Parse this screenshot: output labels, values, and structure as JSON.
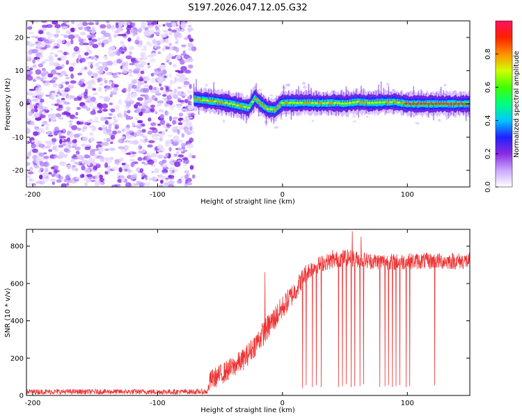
{
  "title": "S197.2026.047.12.05.G32",
  "chart_data": [
    {
      "type": "heatmap",
      "xlabel": "Height of straight line (km)",
      "ylabel": "Frequency (Hz)",
      "xlim": [
        -205,
        150
      ],
      "ylim": [
        -25,
        25
      ],
      "xticks": [
        -200,
        -100,
        0,
        100
      ],
      "xtick_labels": [
        "-200",
        "-100",
        "0",
        "100"
      ],
      "yticks": [
        -20,
        -10,
        0,
        10,
        20
      ],
      "ytick_labels": [
        "-20",
        "-10",
        "0",
        "10",
        "20"
      ],
      "noise_region_x": [
        -205,
        -71
      ],
      "signal_trace": [
        [
          -71,
          1.5
        ],
        [
          -65,
          1.2
        ],
        [
          -55,
          0.8
        ],
        [
          -45,
          0.3
        ],
        [
          -35,
          -0.5
        ],
        [
          -27,
          -1.2
        ],
        [
          -22,
          1.8
        ],
        [
          -18,
          0.2
        ],
        [
          -12,
          -1.5
        ],
        [
          -6,
          -1.8
        ],
        [
          -3,
          -0.6
        ],
        [
          0,
          0.3
        ],
        [
          10,
          0.3
        ],
        [
          20,
          0.4
        ],
        [
          30,
          0.2
        ],
        [
          40,
          0.3
        ],
        [
          50,
          0.1
        ],
        [
          60,
          0.6
        ],
        [
          70,
          0.3
        ],
        [
          80,
          0.5
        ],
        [
          90,
          0.6
        ],
        [
          95,
          0.3
        ],
        [
          100,
          0
        ],
        [
          110,
          0
        ],
        [
          120,
          0
        ],
        [
          130,
          0
        ],
        [
          140,
          0
        ],
        [
          150,
          0
        ]
      ],
      "colorbar": {
        "label": "Normalized spectral amplitude",
        "range": [
          0,
          1
        ],
        "ticks": [
          0.0,
          0.2,
          0.4,
          0.6,
          0.8
        ],
        "tick_labels": [
          "0.0",
          "0.2",
          "0.4",
          "0.6",
          "0.8"
        ],
        "colormap": [
          "#ffffff",
          "#c9a8ff",
          "#8a2be2",
          "#2020ff",
          "#00c8ff",
          "#00ff80",
          "#40ff00",
          "#d0ff00",
          "#ff9000",
          "#ff2000",
          "#ff1060"
        ]
      }
    },
    {
      "type": "line",
      "xlabel": "Height of straight line (km)",
      "ylabel": "SNR (10 * v/v)",
      "xlim": [
        -205,
        150
      ],
      "ylim": [
        0,
        890
      ],
      "xticks": [
        -200,
        -100,
        0,
        100
      ],
      "xtick_labels": [
        "-200",
        "-100",
        "0",
        "100"
      ],
      "yticks": [
        0,
        200,
        400,
        600,
        800
      ],
      "ytick_labels": [
        "0",
        "200",
        "400",
        "600",
        "800"
      ],
      "color": "#ee3333",
      "envelope": [
        [
          -205,
          20
        ],
        [
          -60,
          20
        ],
        [
          -58,
          80
        ],
        [
          -50,
          110
        ],
        [
          -40,
          150
        ],
        [
          -30,
          200
        ],
        [
          -20,
          290
        ],
        [
          -10,
          380
        ],
        [
          0,
          470
        ],
        [
          10,
          560
        ],
        [
          18,
          650
        ],
        [
          25,
          690
        ],
        [
          35,
          715
        ],
        [
          50,
          740
        ],
        [
          70,
          720
        ],
        [
          90,
          715
        ],
        [
          110,
          720
        ],
        [
          130,
          720
        ],
        [
          150,
          720
        ]
      ],
      "noise_amplitude": [
        [
          -205,
          14
        ],
        [
          -60,
          14
        ],
        [
          -58,
          55
        ],
        [
          -30,
          60
        ],
        [
          -10,
          70
        ],
        [
          10,
          60
        ],
        [
          25,
          45
        ],
        [
          150,
          45
        ]
      ],
      "spikes_up": [
        [
          -14,
          660
        ],
        [
          40,
          780
        ],
        [
          56,
          880
        ],
        [
          63,
          850
        ],
        [
          88,
          820
        ]
      ],
      "dropouts": [
        [
          16,
          40
        ],
        [
          19,
          55
        ],
        [
          24,
          45
        ],
        [
          27,
          55
        ],
        [
          31,
          45
        ],
        [
          45,
          45
        ],
        [
          48,
          50
        ],
        [
          51,
          60
        ],
        [
          55,
          45
        ],
        [
          58,
          50
        ],
        [
          62,
          50
        ],
        [
          65,
          60
        ],
        [
          78,
          45
        ],
        [
          82,
          50
        ],
        [
          85,
          55
        ],
        [
          88,
          45
        ],
        [
          91,
          50
        ],
        [
          94,
          55
        ],
        [
          99,
          45
        ],
        [
          102,
          50
        ],
        [
          122,
          55
        ]
      ]
    }
  ]
}
